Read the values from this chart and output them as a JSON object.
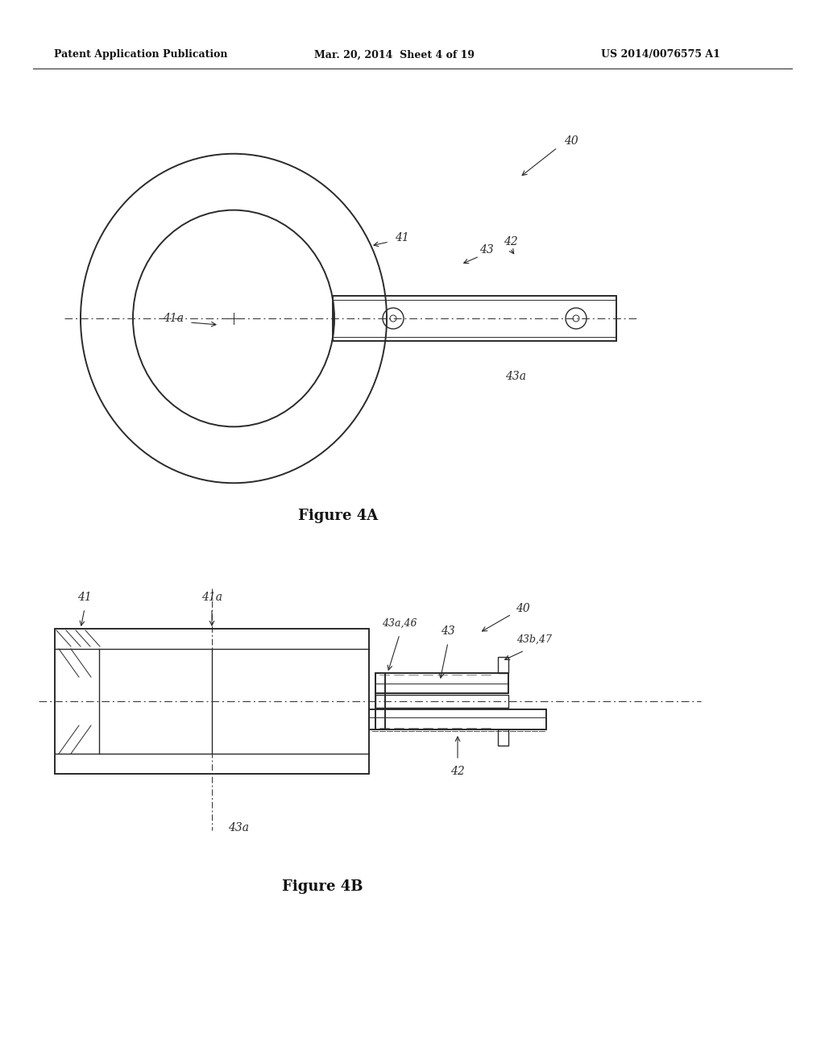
{
  "bg_color": "#ffffff",
  "line_color": "#2a2a2a",
  "header_left": "Patent Application Publication",
  "header_mid": "Mar. 20, 2014  Sheet 4 of 19",
  "header_right": "US 2014/0076575 A1",
  "fig4a_label": "Figure 4A",
  "fig4b_label": "Figure 4B"
}
